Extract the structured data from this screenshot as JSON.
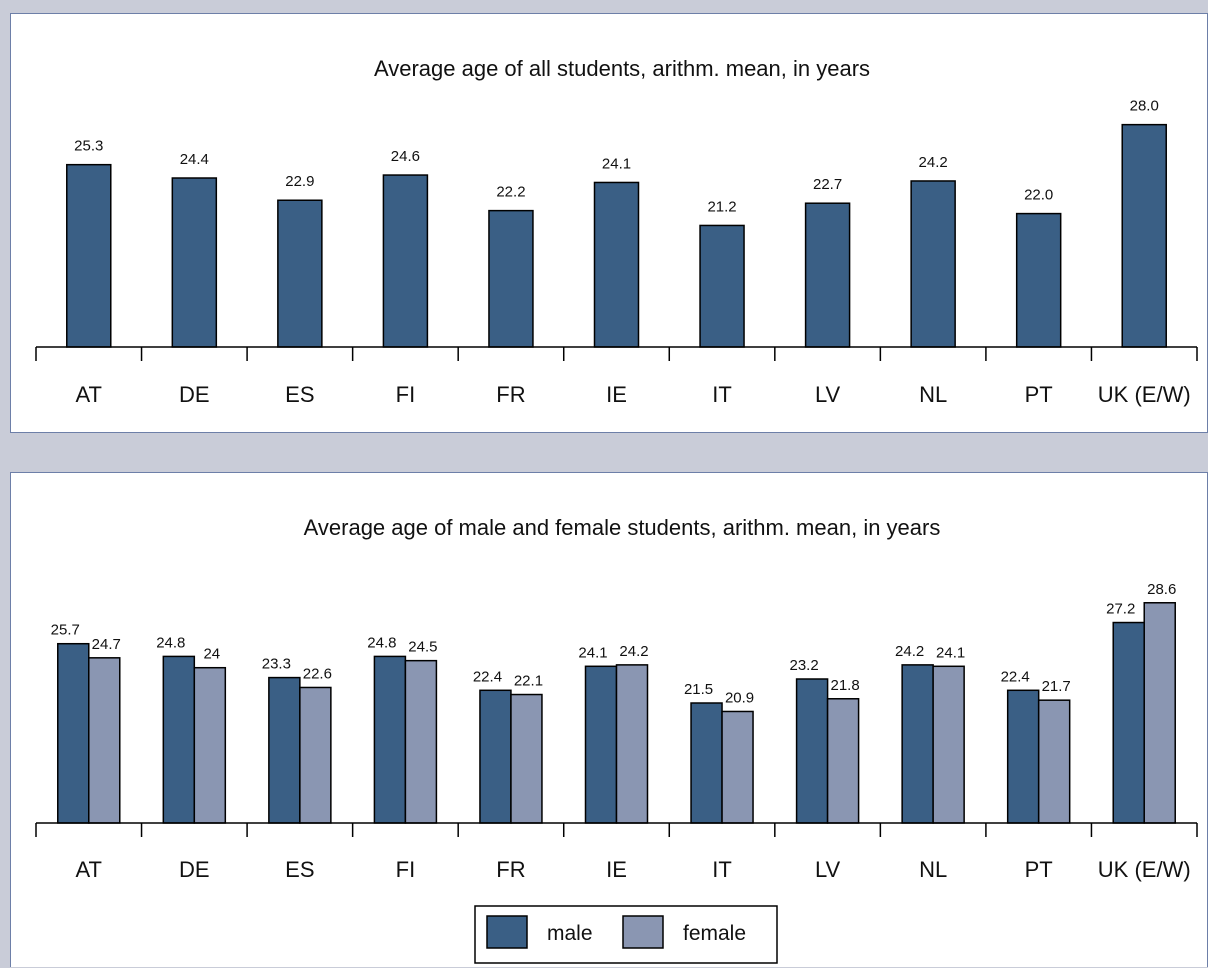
{
  "chart_data": [
    {
      "type": "bar",
      "title": "Average age of all students, arithm. mean, in years",
      "xlabel": "",
      "ylabel": "",
      "categories": [
        "AT",
        "DE",
        "ES",
        "FI",
        "FR",
        "IE",
        "IT",
        "LV",
        "NL",
        "PT",
        "UK (E/W)"
      ],
      "series": [
        {
          "color": "#3a5f85",
          "values": [
            25.3,
            24.4,
            22.9,
            24.6,
            22.2,
            24.1,
            21.2,
            22.7,
            24.2,
            22.0,
            28.0
          ],
          "labels": [
            "25.3",
            "24.4",
            "22.9",
            "24.6",
            "22.2",
            "24.1",
            "21.2",
            "22.7",
            "24.2",
            "22.0",
            "28.0"
          ]
        }
      ],
      "ylim": [
        13.0,
        30.0
      ],
      "grid": false,
      "legend": "none"
    },
    {
      "type": "bar",
      "title": "Average age of male and female students, arithm. mean, in years",
      "xlabel": "",
      "ylabel": "",
      "categories": [
        "AT",
        "DE",
        "ES",
        "FI",
        "FR",
        "IE",
        "IT",
        "LV",
        "NL",
        "PT",
        "UK (E/W)"
      ],
      "series": [
        {
          "name": "male",
          "color": "#3a5f85",
          "values": [
            25.7,
            24.8,
            23.3,
            24.8,
            22.4,
            24.1,
            21.5,
            23.2,
            24.2,
            22.4,
            27.2
          ],
          "labels": [
            "25.7",
            "24.8",
            "23.3",
            "24.8",
            "22.4",
            "24.1",
            "21.5",
            "23.2",
            "24.2",
            "22.4",
            "27.2"
          ]
        },
        {
          "name": "female",
          "color": "#8a96b2",
          "values": [
            24.7,
            24.0,
            22.6,
            24.5,
            22.1,
            24.2,
            20.9,
            21.8,
            24.1,
            21.7,
            28.6
          ],
          "labels": [
            "24.7",
            "24",
            "22.6",
            "24.5",
            "22.1",
            "24.2",
            "20.9",
            "21.8",
            "24.1",
            "21.7",
            "28.6"
          ]
        }
      ],
      "ylim": [
        13.0,
        30.0
      ],
      "grid": false,
      "legend": "bottom-center"
    }
  ]
}
